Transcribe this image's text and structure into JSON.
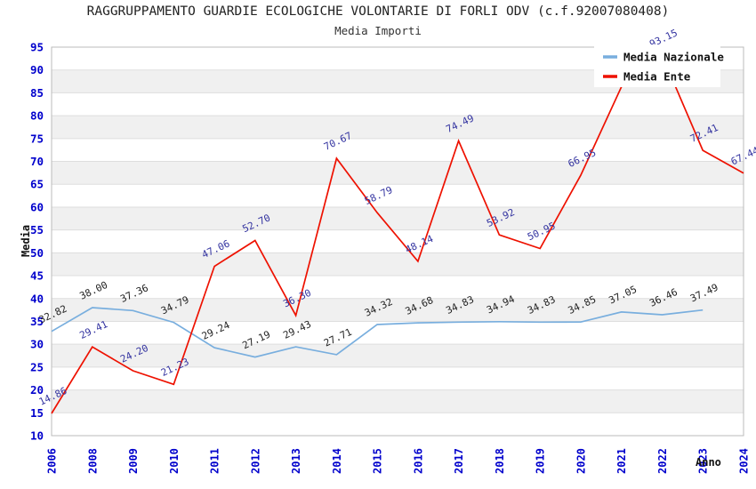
{
  "chart_data": {
    "type": "line",
    "title": "RAGGRUPPAMENTO GUARDIE ECOLOGICHE VOLONTARIE DI FORLI ODV (c.f.92007080408)",
    "subtitle": "Media Importi",
    "xlabel": "Anno",
    "ylabel": "Media",
    "ylim": [
      10,
      95
    ],
    "ytick_step": 5,
    "grid": "horizontal-bands-alternating",
    "legend_position": "top-right-inside",
    "axis_tick_color": "#0000cc",
    "band_color": "#f0f0f0",
    "categories": [
      "2006",
      "2008",
      "2009",
      "2010",
      "2011",
      "2012",
      "2013",
      "2014",
      "2015",
      "2016",
      "2017",
      "2018",
      "2019",
      "2020",
      "2021",
      "2022",
      "2023",
      "2024"
    ],
    "series": [
      {
        "name": "Media Nazionale",
        "color": "#78aede",
        "label_color": "#222222",
        "values": [
          32.82,
          38.0,
          37.36,
          34.79,
          29.24,
          27.19,
          29.43,
          27.71,
          34.32,
          34.68,
          34.83,
          34.94,
          34.83,
          34.85,
          37.05,
          36.46,
          37.49,
          null
        ]
      },
      {
        "name": "Media Ente",
        "color": "#ee1100",
        "label_color": "#3333a0",
        "values": [
          14.86,
          29.41,
          24.2,
          21.23,
          47.06,
          52.7,
          36.3,
          70.67,
          58.79,
          48.14,
          74.49,
          53.92,
          50.95,
          66.95,
          86.3,
          93.15,
          72.41,
          67.44
        ]
      }
    ]
  }
}
